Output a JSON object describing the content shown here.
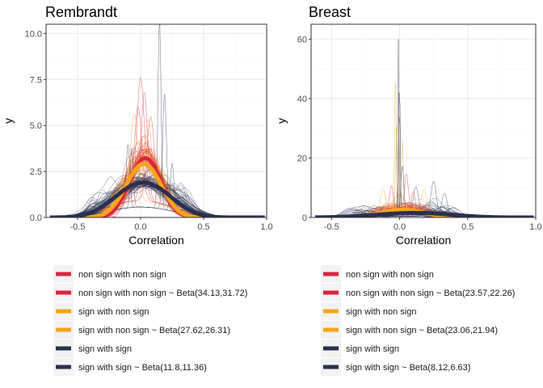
{
  "charts": [
    {
      "type": "density",
      "title": "Rembrandt",
      "xlabel": "Correlation",
      "ylabel": "y",
      "xlim": [
        -0.75,
        1.0
      ],
      "ylim": [
        0,
        10.5
      ],
      "xticks": [
        -0.5,
        0.0,
        0.5,
        1.0
      ],
      "xtick_labels": [
        "-0.5",
        "0.0",
        "0.5",
        "1.0"
      ],
      "yticks": [
        0.0,
        2.5,
        5.0,
        7.5,
        10.0
      ],
      "ytick_labels": [
        "0.0",
        "2.5",
        "5.0",
        "7.5",
        "10.0"
      ],
      "grid": true,
      "legend": [
        "non sign with non sign",
        "non sign with non sign ~ Beta(34.13,31.72)",
        "sign with non sign",
        "sign with non sign ~ Beta(27.62,26.31)",
        "sign with sign",
        "sign with sign ~ Beta(11.8,11.36)"
      ],
      "beta_fits": [
        {
          "group": "non sign with non sign",
          "a": 34.13,
          "b": 31.72
        },
        {
          "group": "sign with non sign",
          "a": 27.62,
          "b": 26.31
        },
        {
          "group": "sign with sign",
          "a": 11.8,
          "b": 11.36
        }
      ]
    },
    {
      "type": "density",
      "title": "Breast",
      "xlabel": "Correlation",
      "ylabel": "y",
      "xlim": [
        -0.65,
        1.0
      ],
      "ylim": [
        0,
        65
      ],
      "xticks": [
        -0.5,
        0.0,
        0.5,
        1.0
      ],
      "xtick_labels": [
        "-0.5",
        "0.0",
        "0.5",
        "1.0"
      ],
      "yticks": [
        0,
        20,
        40,
        60
      ],
      "ytick_labels": [
        "0",
        "20",
        "40",
        "60"
      ],
      "grid": true,
      "legend": [
        "non sign with non sign",
        "non sign with non sign ~ Beta(23.57,22.26)",
        "sign with non sign",
        "sign with non sign ~ Beta(23.06,21.94)",
        "sign with sign",
        "sign with sign ~ Beta(8.12,6.63)"
      ],
      "beta_fits": [
        {
          "group": "non sign with non sign",
          "a": 23.57,
          "b": 22.26
        },
        {
          "group": "sign with non sign",
          "a": 23.06,
          "b": 21.94
        },
        {
          "group": "sign with sign",
          "a": 8.12,
          "b": 6.63
        }
      ]
    }
  ],
  "colors": {
    "non_sign_with_non_sign": "#d7263d",
    "sign_with_non_sign": "#f7a41d",
    "sign_with_sign": "#27304f",
    "panel_border": "#333333",
    "grid_major": "#ebebeb",
    "grid_minor": "#f5f5f5"
  }
}
